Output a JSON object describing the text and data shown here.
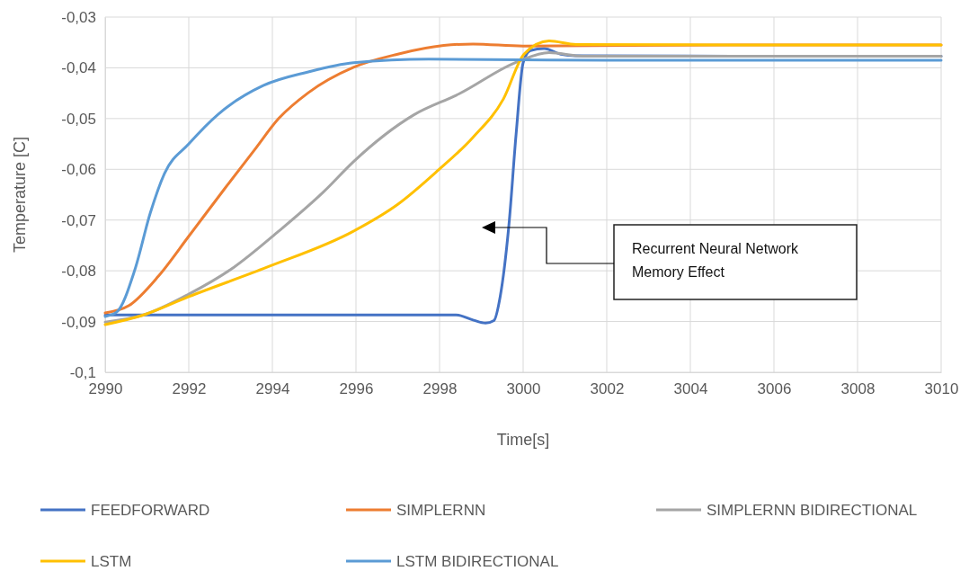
{
  "chart_data": {
    "type": "line",
    "xlabel": "Time[s]",
    "ylabel": "Temperature [C]",
    "xlim": [
      2990,
      3010
    ],
    "xticks": [
      2990,
      2992,
      2994,
      2996,
      2998,
      3000,
      3002,
      3004,
      3006,
      3008,
      3010
    ],
    "ylim": [
      -0.1,
      -0.03
    ],
    "yticks": [
      {
        "value": -0.1,
        "label": "-0,1"
      },
      {
        "value": -0.09,
        "label": "-0,09"
      },
      {
        "value": -0.08,
        "label": "-0,08"
      },
      {
        "value": -0.07,
        "label": "-0,07"
      },
      {
        "value": -0.06,
        "label": "-0,06"
      },
      {
        "value": -0.05,
        "label": "-0,05"
      },
      {
        "value": -0.04,
        "label": "-0,04"
      },
      {
        "value": -0.03,
        "label": "-0,03"
      }
    ],
    "grid": true,
    "legend": "bottom",
    "marker": "none",
    "line_style": "solid",
    "annotations": [
      "Recurrent Neural Network Memory Effect"
    ],
    "series": [
      {
        "name": "FEEDFORWARD",
        "color": "#4472c4",
        "x": [
          2990,
          2994,
          2998.4,
          2998.8,
          2999.1,
          2999.3,
          2999.45,
          2999.66,
          2999.83,
          3000,
          3000.17,
          3000.5,
          3000.9,
          3001.25,
          3005,
          3010
        ],
        "values": [
          -0.0887,
          -0.0887,
          -0.0887,
          -0.0897,
          -0.0903,
          -0.0898,
          -0.0851,
          -0.0709,
          -0.0532,
          -0.039,
          -0.0366,
          -0.0362,
          -0.0373,
          -0.0376,
          -0.0377,
          -0.0377
        ]
      },
      {
        "name": "SIMPLERNN",
        "color": "#ed7d31",
        "x": [
          2990,
          2990.56,
          2991.28,
          2992,
          2992.86,
          2993.57,
          2994.15,
          2994.86,
          2995.94,
          2997,
          2998.1,
          2998.8,
          3000,
          3005,
          3010
        ],
        "values": [
          -0.0883,
          -0.0869,
          -0.081,
          -0.0732,
          -0.0638,
          -0.0562,
          -0.05,
          -0.0449,
          -0.0399,
          -0.0373,
          -0.0356,
          -0.0353,
          -0.0357,
          -0.0355,
          -0.0355
        ]
      },
      {
        "name": "SIMPLERNN BIDIRECTIONAL",
        "color": "#a5a5a5",
        "x": [
          2990,
          2990.92,
          2992,
          2993.08,
          2994.15,
          2995.23,
          2995.94,
          2997.38,
          2998.45,
          2999.89,
          3000.62,
          3001.43,
          3005,
          3010
        ],
        "values": [
          -0.0901,
          -0.0887,
          -0.0846,
          -0.0793,
          -0.0722,
          -0.0644,
          -0.0585,
          -0.0493,
          -0.0452,
          -0.0387,
          -0.037,
          -0.0377,
          -0.0377,
          -0.0377
        ]
      },
      {
        "name": "LSTM",
        "color": "#ffc000",
        "x": [
          2990,
          2990.92,
          2992,
          2993.87,
          2995.94,
          2997,
          2997.95,
          2998.8,
          2999.53,
          3000.02,
          3000.62,
          3001.27,
          3005,
          3010
        ],
        "values": [
          -0.0906,
          -0.0887,
          -0.0851,
          -0.0793,
          -0.0722,
          -0.0669,
          -0.0603,
          -0.0537,
          -0.0461,
          -0.0373,
          -0.0347,
          -0.0354,
          -0.0355,
          -0.0355
        ]
      },
      {
        "name": "LSTM BIDIRECTIONAL",
        "color": "#5b9bd5",
        "x": [
          2990,
          2990.28,
          2990.71,
          2991.08,
          2991.42,
          2992,
          2992.71,
          2993.78,
          2994.86,
          2995.94,
          2997.74,
          2999.89,
          3002,
          3010
        ],
        "values": [
          -0.089,
          -0.0881,
          -0.0798,
          -0.0686,
          -0.0608,
          -0.055,
          -0.0491,
          -0.0435,
          -0.0408,
          -0.039,
          -0.0383,
          -0.0384,
          -0.0385,
          -0.0385
        ]
      }
    ]
  }
}
